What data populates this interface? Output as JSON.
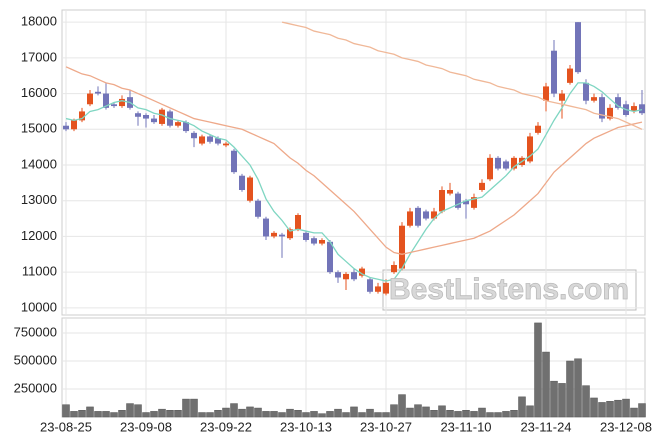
{
  "chart_data": [
    {
      "type": "candlestick",
      "categories": [
        "23-08-25",
        null,
        null,
        null,
        null,
        null,
        null,
        null,
        null,
        null,
        "23-09-08",
        null,
        null,
        null,
        null,
        null,
        null,
        null,
        null,
        null,
        "23-09-22",
        null,
        null,
        null,
        null,
        null,
        null,
        null,
        null,
        null,
        "23-10-13",
        null,
        null,
        null,
        null,
        null,
        null,
        null,
        null,
        null,
        "23-10-27",
        null,
        null,
        null,
        null,
        null,
        null,
        null,
        null,
        null,
        "23-11-10",
        null,
        null,
        null,
        null,
        null,
        null,
        null,
        null,
        null,
        "23-11-24",
        null,
        null,
        null,
        null,
        null,
        null,
        null,
        null,
        null,
        "23-12-08",
        null,
        null
      ],
      "open": [
        15100,
        15000,
        15250,
        15700,
        16050,
        16000,
        15700,
        15650,
        15900,
        15450,
        15400,
        15300,
        15150,
        15500,
        15100,
        15200,
        14900,
        14600,
        14800,
        14750,
        14550,
        14400,
        13700,
        13000,
        13000,
        12500,
        12000,
        12050,
        11950,
        12200,
        12100,
        11950,
        11800,
        11850,
        11000,
        10800,
        11000,
        10900,
        10800,
        10450,
        10400,
        11000,
        11100,
        12300,
        12800,
        12700,
        12500,
        12700,
        13200,
        13200,
        13000,
        12800,
        13300,
        13600,
        14200,
        14100,
        13900,
        14000,
        14100,
        14900,
        15800,
        17200,
        15800,
        16300,
        18000,
        16300,
        15800,
        15900,
        15300,
        15900,
        15700,
        15500,
        15700
      ],
      "high": [
        15200,
        15300,
        15600,
        16100,
        16200,
        16300,
        15750,
        15950,
        16100,
        15500,
        15450,
        15400,
        15600,
        15550,
        15250,
        15250,
        14950,
        14850,
        14850,
        14800,
        14650,
        14450,
        13750,
        13700,
        13050,
        12550,
        12150,
        12100,
        12250,
        12650,
        12150,
        12000,
        11950,
        11900,
        11050,
        11000,
        11100,
        11150,
        10850,
        10700,
        10800,
        11300,
        12400,
        12800,
        12850,
        12750,
        12800,
        13400,
        13500,
        13250,
        13050,
        13200,
        13600,
        14300,
        14250,
        14150,
        14250,
        14250,
        14900,
        15200,
        16300,
        17500,
        16100,
        16800,
        18000,
        16400,
        16000,
        16000,
        15700,
        16000,
        15800,
        15750,
        16100
      ],
      "low": [
        14950,
        14950,
        15200,
        15650,
        15950,
        15550,
        15600,
        15600,
        15550,
        15100,
        15050,
        15150,
        15100,
        15050,
        15050,
        14900,
        14500,
        14550,
        14600,
        14550,
        14500,
        13750,
        13250,
        12950,
        12500,
        11900,
        11950,
        11400,
        11900,
        12150,
        11850,
        11750,
        11750,
        10950,
        10700,
        10500,
        10750,
        10850,
        10400,
        10400,
        10350,
        10950,
        11050,
        12250,
        12250,
        12450,
        12450,
        12650,
        13150,
        12750,
        12500,
        12750,
        13250,
        13550,
        13850,
        13850,
        13850,
        13950,
        14050,
        14850,
        15500,
        15900,
        15300,
        16250,
        16550,
        15700,
        15750,
        15200,
        15250,
        15550,
        15350,
        15450,
        15400
      ],
      "close": [
        15000,
        15250,
        15500,
        16000,
        16000,
        15600,
        15650,
        15850,
        15600,
        15350,
        15300,
        15200,
        15550,
        15100,
        15200,
        14950,
        14750,
        14800,
        14650,
        14600,
        14600,
        13800,
        13300,
        13650,
        12550,
        12000,
        12100,
        12000,
        12200,
        12600,
        11900,
        11800,
        11900,
        11000,
        10850,
        10950,
        10800,
        11100,
        10450,
        10600,
        10700,
        11200,
        12300,
        12700,
        12300,
        12500,
        12700,
        13300,
        13300,
        12800,
        12900,
        13100,
        13500,
        14200,
        13900,
        13900,
        14200,
        14200,
        14800,
        15100,
        16200,
        16000,
        16000,
        16700,
        16600,
        15800,
        15900,
        15300,
        15600,
        15600,
        15400,
        15650,
        15450
      ],
      "up_color": "#e4531f",
      "down_color": "#7274b8",
      "series": [
        {
          "color": "#7fd6c2",
          "values": [
            15300,
            15250,
            15300,
            15500,
            15550,
            15650,
            15750,
            15800,
            15750,
            15600,
            15550,
            15450,
            15400,
            15300,
            15250,
            15200,
            15100,
            14950,
            14850,
            14750,
            14700,
            14500,
            14250,
            14000,
            13600,
            13050,
            12700,
            12450,
            12150,
            12200,
            12150,
            12100,
            12100,
            11850,
            11500,
            11300,
            11100,
            10950,
            10850,
            10800,
            10750,
            10800,
            11100,
            11500,
            11850,
            12200,
            12500,
            12700,
            12800,
            12900,
            13000,
            13050,
            13100,
            13300,
            13500,
            13700,
            13950,
            14100,
            14250,
            14450,
            14850,
            15250,
            15600,
            16000,
            16300,
            16300,
            16200,
            16050,
            15850,
            15650,
            15550,
            15500,
            15550
          ]
        },
        {
          "color": "#eea98a",
          "values": [
            16750,
            16650,
            16550,
            16500,
            16400,
            16300,
            16250,
            16150,
            16100,
            16000,
            15900,
            15800,
            15700,
            15600,
            15500,
            15400,
            15300,
            15250,
            15200,
            15150,
            15100,
            15050,
            15000,
            14900,
            14800,
            14700,
            14600,
            14400,
            14200,
            14050,
            13850,
            13700,
            13500,
            13300,
            13100,
            12900,
            12700,
            12450,
            12200,
            11950,
            11700,
            11550,
            11500,
            11550,
            11600,
            11650,
            11700,
            11750,
            11800,
            11850,
            11900,
            11950,
            12050,
            12150,
            12300,
            12450,
            12600,
            12800,
            13000,
            13200,
            13500,
            13800,
            14000,
            14200,
            14400,
            14600,
            14750,
            14850,
            14950,
            15050,
            15100,
            15150,
            15200
          ]
        },
        {
          "color": "#f0b898",
          "values": [
            null,
            null,
            null,
            null,
            null,
            null,
            null,
            null,
            null,
            null,
            null,
            null,
            null,
            null,
            null,
            null,
            null,
            null,
            null,
            null,
            null,
            null,
            null,
            null,
            null,
            null,
            null,
            18000,
            17950,
            17900,
            17850,
            17750,
            17700,
            17650,
            17550,
            17500,
            17400,
            17350,
            17300,
            17200,
            17150,
            17100,
            17000,
            16950,
            16900,
            16800,
            16750,
            16700,
            16600,
            16550,
            16500,
            16400,
            16350,
            16300,
            16200,
            16150,
            16100,
            16000,
            15950,
            15900,
            15800,
            15750,
            15700,
            15650,
            15600,
            15550,
            15450,
            15400,
            15350,
            15300,
            15200,
            15100,
            15000
          ]
        }
      ],
      "ylim": [
        9800,
        18340
      ],
      "yticks": [
        10000,
        11000,
        12000,
        13000,
        14000,
        15000,
        16000,
        17000,
        18000
      ],
      "grid": true,
      "watermark": "BestListens.com"
    },
    {
      "type": "bar",
      "values": [
        110000,
        50000,
        60000,
        90000,
        50000,
        50000,
        40000,
        60000,
        120000,
        110000,
        40000,
        50000,
        70000,
        60000,
        60000,
        160000,
        160000,
        40000,
        40000,
        60000,
        80000,
        120000,
        70000,
        90000,
        80000,
        50000,
        50000,
        40000,
        70000,
        60000,
        40000,
        50000,
        30000,
        50000,
        70000,
        40000,
        90000,
        40000,
        70000,
        40000,
        40000,
        110000,
        200000,
        80000,
        110000,
        90000,
        60000,
        100000,
        60000,
        50000,
        60000,
        50000,
        80000,
        40000,
        40000,
        50000,
        60000,
        180000,
        100000,
        840000,
        580000,
        320000,
        300000,
        500000,
        520000,
        280000,
        170000,
        130000,
        140000,
        150000,
        160000,
        80000,
        120000
      ],
      "color": "#707070",
      "ylim": [
        0,
        884000
      ],
      "yticks": [
        250000,
        500000,
        750000
      ],
      "grid": true
    }
  ]
}
